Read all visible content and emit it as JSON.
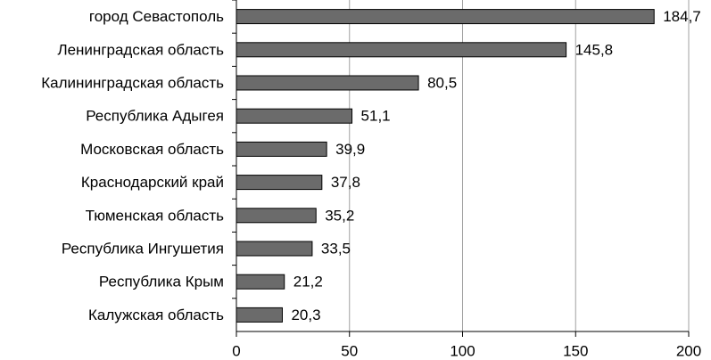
{
  "chart_data": {
    "type": "barh",
    "categories": [
      "город Севастополь",
      "Ленинградская область",
      "Калининградская область",
      "Республика Адыгея",
      "Московская область",
      "Краснодарский край",
      "Тюменская область",
      "Республика Ингушетия",
      "Республика Крым",
      "Калужская область"
    ],
    "values": [
      184.7,
      145.8,
      80.5,
      51.1,
      39.9,
      37.8,
      35.2,
      33.5,
      21.2,
      20.3
    ],
    "value_labels": [
      "184,7",
      "145,8",
      "80,5",
      "51,1",
      "39,9",
      "37,8",
      "35,2",
      "33,5",
      "21,2",
      "20,3"
    ],
    "color": "#6b6b6b",
    "xlim": [
      0,
      200
    ],
    "xticks": [
      0,
      50,
      100,
      150,
      200
    ],
    "grid": true
  }
}
